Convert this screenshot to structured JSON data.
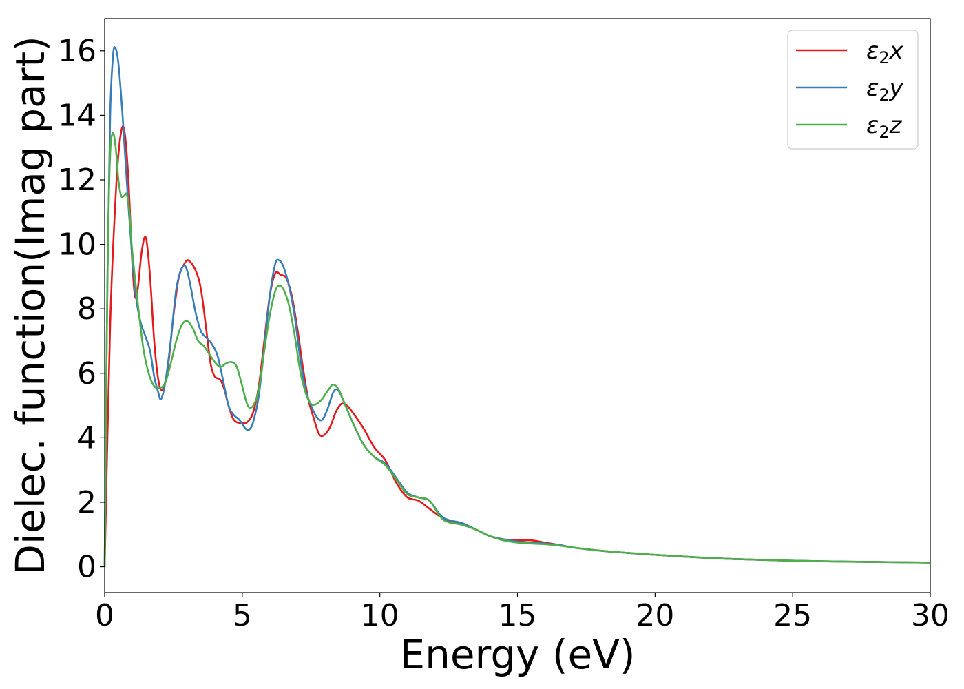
{
  "chart_data": {
    "type": "line",
    "xlabel": "Energy (eV)",
    "ylabel": "Dielec. function(Imag part)",
    "xlim": [
      0,
      30
    ],
    "ylim": [
      -0.8,
      17
    ],
    "xticks": [
      0,
      5,
      10,
      15,
      20,
      25,
      30
    ],
    "yticks": [
      0,
      2,
      4,
      6,
      8,
      10,
      12,
      14,
      16
    ],
    "grid": false,
    "legend_position": "top-right",
    "series": [
      {
        "name": "ε₂x",
        "legend_main": "ε",
        "legend_sub": "2",
        "legend_axis": "x",
        "color": "#e41a1c",
        "points": [
          [
            0,
            0
          ],
          [
            0.2,
            7.5
          ],
          [
            0.4,
            11.5
          ],
          [
            0.55,
            13.2
          ],
          [
            0.7,
            13.6
          ],
          [
            0.85,
            12.2
          ],
          [
            1.0,
            9.5
          ],
          [
            1.1,
            8.4
          ],
          [
            1.2,
            8.6
          ],
          [
            1.35,
            9.8
          ],
          [
            1.5,
            10.2
          ],
          [
            1.65,
            9.0
          ],
          [
            1.8,
            7.0
          ],
          [
            1.95,
            5.8
          ],
          [
            2.1,
            5.5
          ],
          [
            2.3,
            6.2
          ],
          [
            2.5,
            7.8
          ],
          [
            2.7,
            9.0
          ],
          [
            2.9,
            9.4
          ],
          [
            3.05,
            9.5
          ],
          [
            3.3,
            9.2
          ],
          [
            3.5,
            8.6
          ],
          [
            3.7,
            7.3
          ],
          [
            3.85,
            6.3
          ],
          [
            4.0,
            5.9
          ],
          [
            4.2,
            5.8
          ],
          [
            4.35,
            5.5
          ],
          [
            4.5,
            5.0
          ],
          [
            4.7,
            4.55
          ],
          [
            5.0,
            4.45
          ],
          [
            5.2,
            4.5
          ],
          [
            5.4,
            4.8
          ],
          [
            5.6,
            5.6
          ],
          [
            5.8,
            7.0
          ],
          [
            6.0,
            8.4
          ],
          [
            6.2,
            9.1
          ],
          [
            6.4,
            9.05
          ],
          [
            6.6,
            8.95
          ],
          [
            6.8,
            8.4
          ],
          [
            7.0,
            7.4
          ],
          [
            7.2,
            6.2
          ],
          [
            7.4,
            5.2
          ],
          [
            7.6,
            4.6
          ],
          [
            7.8,
            4.1
          ],
          [
            8.0,
            4.1
          ],
          [
            8.2,
            4.35
          ],
          [
            8.4,
            4.8
          ],
          [
            8.6,
            5.05
          ],
          [
            8.8,
            5.0
          ],
          [
            9.0,
            4.8
          ],
          [
            9.4,
            4.3
          ],
          [
            9.8,
            3.7
          ],
          [
            10.2,
            3.3
          ],
          [
            10.6,
            2.6
          ],
          [
            11.0,
            2.15
          ],
          [
            11.4,
            2.05
          ],
          [
            11.8,
            1.8
          ],
          [
            12.2,
            1.55
          ],
          [
            12.5,
            1.4
          ],
          [
            13.0,
            1.3
          ],
          [
            13.5,
            1.15
          ],
          [
            14.0,
            0.95
          ],
          [
            14.5,
            0.85
          ],
          [
            15.0,
            0.82
          ],
          [
            15.5,
            0.82
          ],
          [
            16.0,
            0.75
          ],
          [
            16.5,
            0.68
          ],
          [
            17.0,
            0.6
          ],
          [
            18.0,
            0.5
          ],
          [
            19.0,
            0.43
          ],
          [
            20.0,
            0.37
          ],
          [
            22.0,
            0.27
          ],
          [
            24.0,
            0.21
          ],
          [
            26.0,
            0.17
          ],
          [
            28.0,
            0.15
          ],
          [
            30.0,
            0.13
          ]
        ]
      },
      {
        "name": "ε₂y",
        "legend_main": "ε",
        "legend_sub": "2",
        "legend_axis": "y",
        "color": "#377eb8",
        "points": [
          [
            0,
            0
          ],
          [
            0.1,
            9.0
          ],
          [
            0.2,
            14.0
          ],
          [
            0.3,
            15.8
          ],
          [
            0.38,
            16.1
          ],
          [
            0.5,
            15.6
          ],
          [
            0.65,
            14.0
          ],
          [
            0.8,
            12.0
          ],
          [
            1.0,
            9.6
          ],
          [
            1.15,
            8.3
          ],
          [
            1.3,
            7.6
          ],
          [
            1.5,
            7.1
          ],
          [
            1.65,
            6.7
          ],
          [
            1.8,
            5.9
          ],
          [
            1.95,
            5.4
          ],
          [
            2.05,
            5.2
          ],
          [
            2.2,
            5.7
          ],
          [
            2.4,
            7.0
          ],
          [
            2.6,
            8.6
          ],
          [
            2.8,
            9.25
          ],
          [
            2.95,
            9.3
          ],
          [
            3.1,
            8.8
          ],
          [
            3.3,
            7.9
          ],
          [
            3.5,
            7.3
          ],
          [
            3.7,
            7.1
          ],
          [
            3.9,
            6.9
          ],
          [
            4.1,
            6.55
          ],
          [
            4.3,
            5.8
          ],
          [
            4.5,
            5.0
          ],
          [
            4.7,
            4.7
          ],
          [
            4.9,
            4.55
          ],
          [
            5.1,
            4.3
          ],
          [
            5.25,
            4.25
          ],
          [
            5.4,
            4.5
          ],
          [
            5.6,
            5.3
          ],
          [
            5.8,
            6.8
          ],
          [
            6.0,
            8.4
          ],
          [
            6.2,
            9.4
          ],
          [
            6.35,
            9.5
          ],
          [
            6.5,
            9.3
          ],
          [
            6.7,
            8.7
          ],
          [
            6.9,
            7.8
          ],
          [
            7.1,
            6.5
          ],
          [
            7.3,
            5.5
          ],
          [
            7.5,
            5.0
          ],
          [
            7.7,
            4.65
          ],
          [
            7.9,
            4.55
          ],
          [
            8.1,
            4.9
          ],
          [
            8.3,
            5.4
          ],
          [
            8.45,
            5.5
          ],
          [
            8.6,
            5.3
          ],
          [
            8.8,
            4.9
          ],
          [
            9.0,
            4.5
          ],
          [
            9.4,
            3.8
          ],
          [
            9.8,
            3.4
          ],
          [
            10.2,
            3.2
          ],
          [
            10.6,
            2.75
          ],
          [
            11.0,
            2.3
          ],
          [
            11.4,
            2.15
          ],
          [
            11.8,
            2.05
          ],
          [
            12.2,
            1.6
          ],
          [
            12.5,
            1.45
          ],
          [
            13.0,
            1.35
          ],
          [
            13.5,
            1.15
          ],
          [
            14.0,
            0.95
          ],
          [
            14.5,
            0.85
          ],
          [
            15.0,
            0.78
          ],
          [
            15.5,
            0.75
          ],
          [
            16.0,
            0.72
          ],
          [
            16.5,
            0.68
          ],
          [
            17.0,
            0.6
          ],
          [
            18.0,
            0.5
          ],
          [
            19.0,
            0.43
          ],
          [
            20.0,
            0.37
          ],
          [
            22.0,
            0.27
          ],
          [
            24.0,
            0.21
          ],
          [
            26.0,
            0.17
          ],
          [
            28.0,
            0.15
          ],
          [
            30.0,
            0.13
          ]
        ]
      },
      {
        "name": "ε₂z",
        "legend_main": "ε",
        "legend_sub": "2",
        "legend_axis": "z",
        "color": "#4daf4a",
        "points": [
          [
            0,
            0
          ],
          [
            0.05,
            5.0
          ],
          [
            0.12,
            10.0
          ],
          [
            0.2,
            12.8
          ],
          [
            0.3,
            13.45
          ],
          [
            0.4,
            13.0
          ],
          [
            0.5,
            12.0
          ],
          [
            0.6,
            11.5
          ],
          [
            0.7,
            11.5
          ],
          [
            0.8,
            11.55
          ],
          [
            0.9,
            11.0
          ],
          [
            1.0,
            9.8
          ],
          [
            1.2,
            8.2
          ],
          [
            1.4,
            6.8
          ],
          [
            1.6,
            6.0
          ],
          [
            1.8,
            5.6
          ],
          [
            2.0,
            5.55
          ],
          [
            2.2,
            5.7
          ],
          [
            2.4,
            6.3
          ],
          [
            2.6,
            7.0
          ],
          [
            2.8,
            7.5
          ],
          [
            3.0,
            7.62
          ],
          [
            3.2,
            7.4
          ],
          [
            3.4,
            7.0
          ],
          [
            3.6,
            6.85
          ],
          [
            3.8,
            6.6
          ],
          [
            4.0,
            6.35
          ],
          [
            4.2,
            6.2
          ],
          [
            4.4,
            6.3
          ],
          [
            4.6,
            6.35
          ],
          [
            4.8,
            6.2
          ],
          [
            5.0,
            5.6
          ],
          [
            5.2,
            5.0
          ],
          [
            5.4,
            5.0
          ],
          [
            5.6,
            5.5
          ],
          [
            5.8,
            6.7
          ],
          [
            6.0,
            7.8
          ],
          [
            6.2,
            8.55
          ],
          [
            6.35,
            8.72
          ],
          [
            6.5,
            8.6
          ],
          [
            6.7,
            8.1
          ],
          [
            6.9,
            7.2
          ],
          [
            7.1,
            6.1
          ],
          [
            7.3,
            5.4
          ],
          [
            7.5,
            5.05
          ],
          [
            7.7,
            5.05
          ],
          [
            7.9,
            5.2
          ],
          [
            8.1,
            5.45
          ],
          [
            8.3,
            5.65
          ],
          [
            8.5,
            5.5
          ],
          [
            8.7,
            5.1
          ],
          [
            9.0,
            4.5
          ],
          [
            9.4,
            3.8
          ],
          [
            9.8,
            3.4
          ],
          [
            10.2,
            3.15
          ],
          [
            10.6,
            2.7
          ],
          [
            11.0,
            2.25
          ],
          [
            11.4,
            2.15
          ],
          [
            11.8,
            2.05
          ],
          [
            12.2,
            1.55
          ],
          [
            12.5,
            1.38
          ],
          [
            13.0,
            1.3
          ],
          [
            13.5,
            1.15
          ],
          [
            14.0,
            0.95
          ],
          [
            14.5,
            0.82
          ],
          [
            15.0,
            0.75
          ],
          [
            15.5,
            0.72
          ],
          [
            16.0,
            0.7
          ],
          [
            16.5,
            0.66
          ],
          [
            17.0,
            0.6
          ],
          [
            18.0,
            0.5
          ],
          [
            19.0,
            0.43
          ],
          [
            20.0,
            0.37
          ],
          [
            22.0,
            0.27
          ],
          [
            24.0,
            0.21
          ],
          [
            26.0,
            0.17
          ],
          [
            28.0,
            0.15
          ],
          [
            30.0,
            0.13
          ]
        ]
      }
    ]
  }
}
